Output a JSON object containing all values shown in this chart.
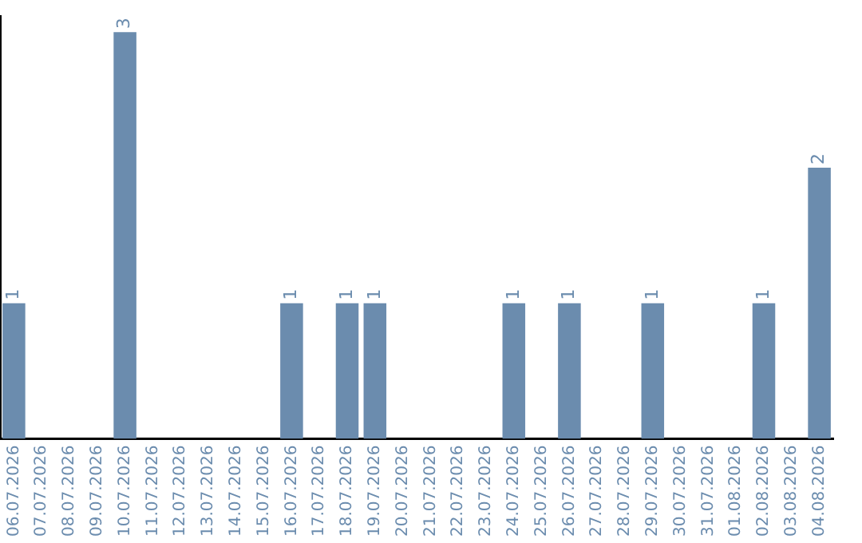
{
  "chart_data": {
    "type": "bar",
    "categories": [
      "06.07.2026",
      "07.07.2026",
      "08.07.2026",
      "09.07.2026",
      "10.07.2026",
      "11.07.2026",
      "12.07.2026",
      "13.07.2026",
      "14.07.2026",
      "15.07.2026",
      "16.07.2026",
      "17.07.2026",
      "18.07.2026",
      "19.07.2026",
      "20.07.2026",
      "21.07.2026",
      "22.07.2026",
      "23.07.2026",
      "24.07.2026",
      "25.07.2026",
      "26.07.2026",
      "27.07.2026",
      "28.07.2026",
      "29.07.2026",
      "30.07.2026",
      "31.07.2026",
      "01.08.2026",
      "02.08.2026",
      "03.08.2026",
      "04.08.2026"
    ],
    "values": [
      1,
      0,
      0,
      0,
      3,
      0,
      0,
      0,
      0,
      0,
      1,
      0,
      1,
      1,
      0,
      0,
      0,
      0,
      1,
      0,
      1,
      0,
      0,
      1,
      0,
      0,
      0,
      1,
      0,
      2
    ],
    "value_labels": [
      "1",
      null,
      null,
      null,
      "3",
      null,
      null,
      null,
      null,
      null,
      "1",
      null,
      "1",
      "1",
      null,
      null,
      null,
      null,
      "1",
      null,
      "1",
      null,
      null,
      "1",
      null,
      null,
      null,
      "1",
      null,
      "2"
    ],
    "color": "#6b8cae",
    "ylim": [
      0,
      3.12
    ],
    "tick_labels": "x",
    "grid": false,
    "legend": false
  }
}
